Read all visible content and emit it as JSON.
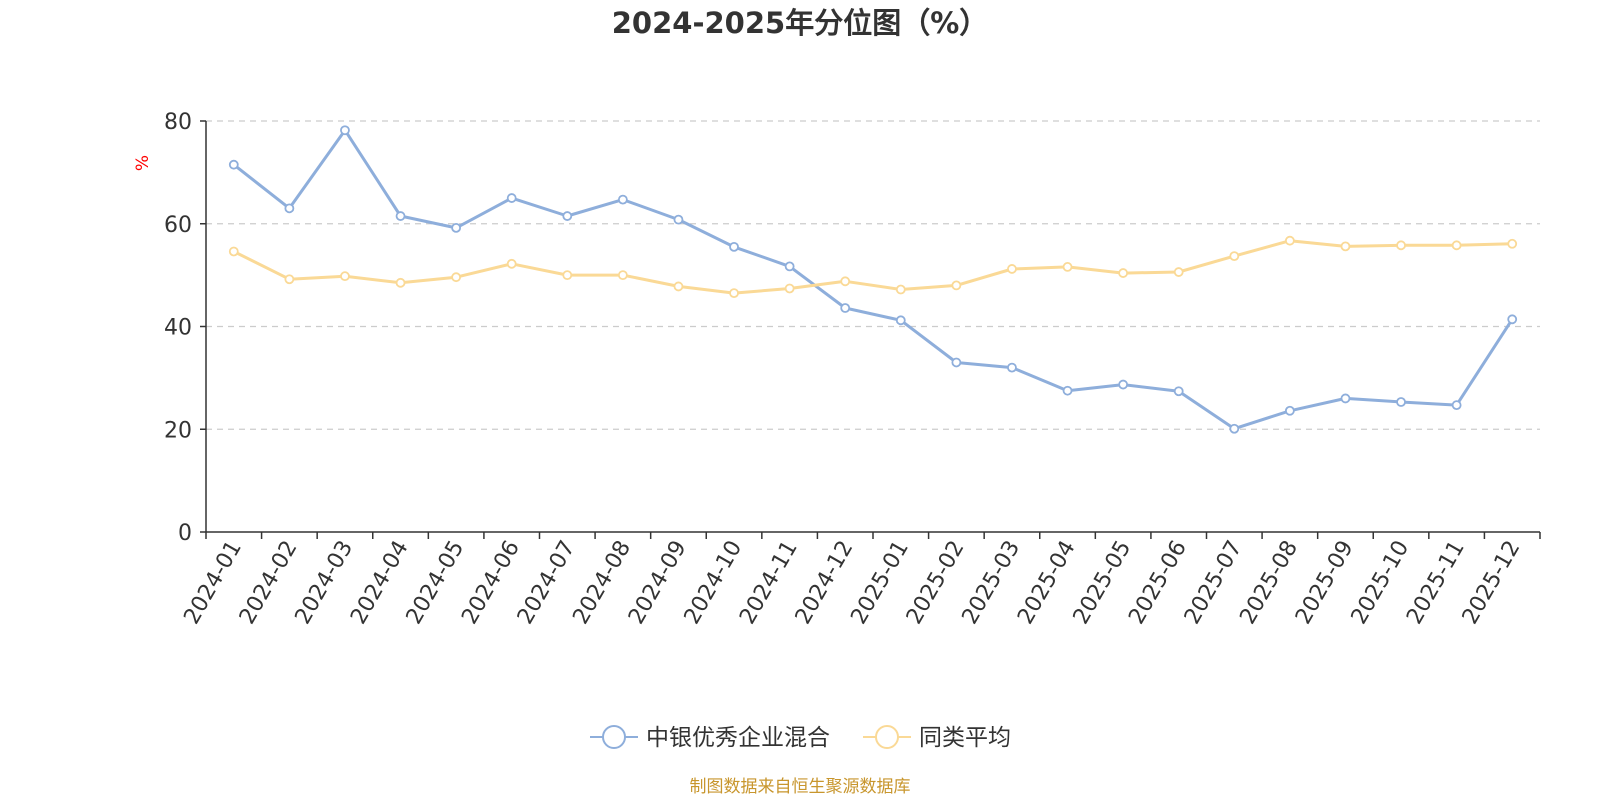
{
  "chart_data": {
    "type": "line",
    "title": "2024-2025年分位图（%）",
    "ylabel": "%",
    "xlabel": "",
    "ylim": [
      0,
      80
    ],
    "yticks": [
      0,
      20,
      40,
      60,
      80
    ],
    "grid": true,
    "legend_position": "bottom",
    "categories": [
      "2024-01",
      "2024-02",
      "2024-03",
      "2024-04",
      "2024-05",
      "2024-06",
      "2024-07",
      "2024-08",
      "2024-09",
      "2024-10",
      "2024-11",
      "2024-12",
      "2025-01",
      "2025-02",
      "2025-03",
      "2025-04",
      "2025-05",
      "2025-06",
      "2025-07",
      "2025-08",
      "2025-09",
      "2025-10",
      "2025-11",
      "2025-12"
    ],
    "series": [
      {
        "name": "中银优秀企业混合",
        "color": "#8eaedb",
        "values": [
          71.5,
          63.0,
          78.2,
          61.5,
          59.2,
          65.0,
          61.5,
          64.7,
          60.8,
          55.5,
          51.7,
          43.6,
          41.2,
          33.0,
          32.0,
          27.5,
          28.7,
          27.4,
          20.1,
          23.6,
          26.0,
          25.3,
          24.7,
          41.4
        ]
      },
      {
        "name": "同类平均",
        "color": "#fad996",
        "values": [
          54.6,
          49.2,
          49.8,
          48.5,
          49.6,
          52.2,
          50.0,
          50.0,
          47.8,
          46.5,
          47.4,
          48.8,
          47.2,
          48.0,
          51.2,
          51.6,
          50.4,
          50.6,
          53.7,
          56.7,
          55.6,
          55.8,
          55.8,
          56.1
        ]
      }
    ],
    "source_note": "制图数据来自恒生聚源数据库"
  },
  "colors": {
    "axis": "#333333",
    "grid": "#cccccc",
    "marker_fill": "#ffffff"
  }
}
